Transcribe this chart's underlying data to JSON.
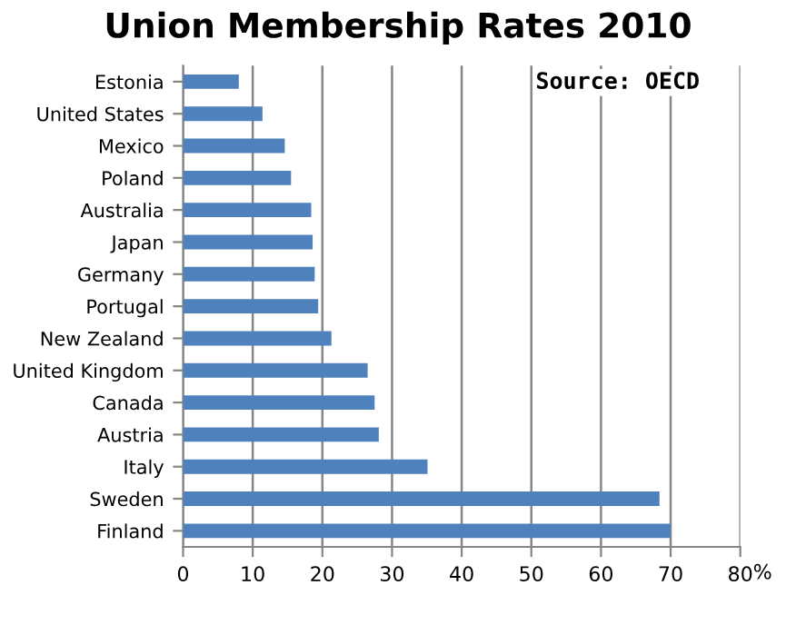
{
  "chart_data": {
    "type": "bar",
    "orientation": "horizontal",
    "title": "Union Membership Rates 2010",
    "categories": [
      "Estonia",
      "United States",
      "Mexico",
      "Poland",
      "Australia",
      "Japan",
      "Germany",
      "Portugal",
      "New Zealand",
      "United Kingdom",
      "Canada",
      "Austria",
      "Italy",
      "Sweden",
      "Finland"
    ],
    "values": [
      8.0,
      11.4,
      14.6,
      15.5,
      18.4,
      18.6,
      18.9,
      19.4,
      21.3,
      26.5,
      27.5,
      28.1,
      35.1,
      68.4,
      70.0
    ],
    "color": "#4f81bd",
    "xlim": [
      0,
      80
    ],
    "xticks": [
      0,
      10,
      20,
      30,
      40,
      50,
      60,
      70,
      80
    ],
    "xlabel": "%",
    "grid": "x",
    "annotations": [
      "Source: OECD"
    ]
  }
}
